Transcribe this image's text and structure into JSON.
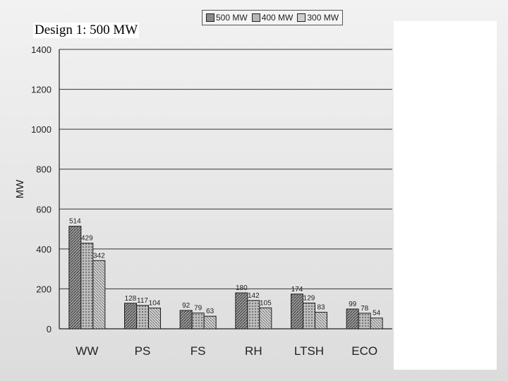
{
  "slide": {
    "title": "Design 1: 500 MW"
  },
  "colors": {
    "series_500": "#8a8a8a",
    "series_400": "#b6b6b6",
    "series_300": "#cfcfcf",
    "grid": "#333333",
    "axis_text": "#222222"
  },
  "chart_data": {
    "type": "bar",
    "title": "",
    "xlabel": "",
    "ylabel": "MW",
    "ylim": [
      0,
      1400
    ],
    "yticks": [
      0,
      200,
      400,
      600,
      800,
      1000,
      1200,
      1400
    ],
    "grid": true,
    "legend_position": "top",
    "categories": [
      "WW",
      "PS",
      "FS",
      "RH",
      "LTSH",
      "ECO"
    ],
    "series": [
      {
        "name": "500 MW",
        "values": [
          514,
          128,
          92,
          180,
          174,
          99
        ]
      },
      {
        "name": "400 MW",
        "values": [
          429,
          117,
          79,
          142,
          129,
          78
        ]
      },
      {
        "name": "300 MW",
        "values": [
          342,
          104,
          63,
          105,
          83,
          54
        ]
      }
    ]
  }
}
